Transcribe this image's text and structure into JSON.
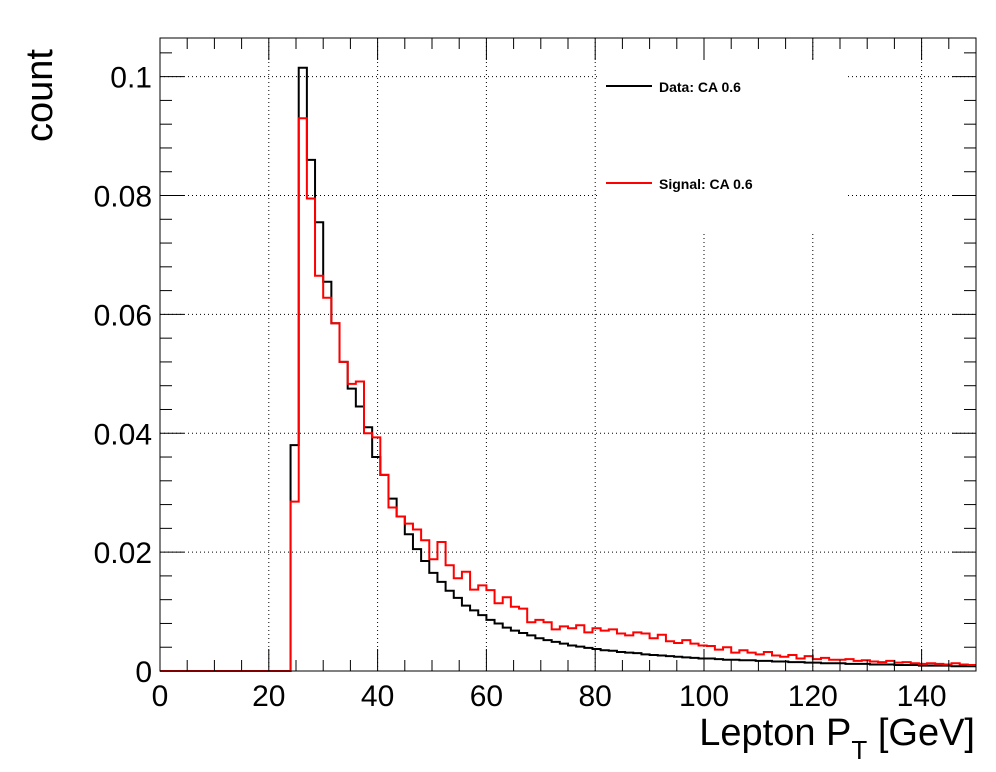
{
  "chart_data": {
    "type": "line",
    "style": "step-histogram",
    "xlabel": "Lepton P",
    "xlabel_sub": "T",
    "xlabel_unit": " [GeV]",
    "ylabel": "count",
    "xlim": [
      0,
      150
    ],
    "ylim": [
      0,
      0.1065
    ],
    "x_ticks": [
      "0",
      "20",
      "40",
      "60",
      "80",
      "100",
      "120",
      "140"
    ],
    "y_ticks": [
      "0",
      "0.02",
      "0.04",
      "0.06",
      "0.08",
      "0.1"
    ],
    "grid": true,
    "legend_position": "top-right",
    "bin_width": 1.5,
    "series": [
      {
        "name": "Data: CA 0.6",
        "color": "#000000",
        "values": [
          0,
          0,
          0,
          0,
          0,
          0,
          0,
          0,
          0,
          0,
          0,
          0,
          0,
          0,
          0,
          0,
          0.038,
          0.1015,
          0.086,
          0.0755,
          0.0655,
          0.0585,
          0.052,
          0.0475,
          0.0445,
          0.041,
          0.036,
          0.033,
          0.029,
          0.026,
          0.023,
          0.0205,
          0.0185,
          0.0165,
          0.015,
          0.0135,
          0.0123,
          0.011,
          0.0102,
          0.0094,
          0.0086,
          0.008,
          0.0073,
          0.0068,
          0.0064,
          0.006,
          0.0055,
          0.0052,
          0.0049,
          0.0046,
          0.0043,
          0.0041,
          0.0039,
          0.0037,
          0.0035,
          0.0034,
          0.0032,
          0.0031,
          0.003,
          0.0028,
          0.0027,
          0.0026,
          0.0025,
          0.0024,
          0.0023,
          0.0022,
          0.0021,
          0.0021,
          0.002,
          0.0019,
          0.0019,
          0.0018,
          0.0018,
          0.0017,
          0.0017,
          0.0016,
          0.0016,
          0.0015,
          0.0015,
          0.0014,
          0.0014,
          0.0013,
          0.0013,
          0.0013,
          0.0012,
          0.0012,
          0.0012,
          0.0011,
          0.0011,
          0.0011,
          0.001,
          0.001,
          0.001,
          0.0009,
          0.0009,
          0.0009,
          0.0009,
          0.0008,
          0.0008,
          0.0008
        ]
      },
      {
        "name": "Signal: CA 0.6",
        "color": "#ff0000",
        "values": [
          0,
          0,
          0,
          0,
          0,
          0,
          0,
          0,
          0,
          0,
          0,
          0,
          0,
          0,
          0,
          0,
          0.0285,
          0.093,
          0.0795,
          0.0665,
          0.0628,
          0.0585,
          0.052,
          0.0483,
          0.0487,
          0.04,
          0.0393,
          0.033,
          0.0275,
          0.026,
          0.0248,
          0.0238,
          0.022,
          0.0188,
          0.0217,
          0.0178,
          0.0156,
          0.0167,
          0.0137,
          0.0144,
          0.0136,
          0.0114,
          0.0124,
          0.0108,
          0.0105,
          0.0082,
          0.0086,
          0.0082,
          0.007,
          0.0075,
          0.0072,
          0.0077,
          0.0065,
          0.0072,
          0.0068,
          0.007,
          0.0063,
          0.006,
          0.0065,
          0.0063,
          0.0055,
          0.0061,
          0.005,
          0.0047,
          0.0052,
          0.0046,
          0.0043,
          0.0042,
          0.0036,
          0.004,
          0.0031,
          0.0035,
          0.0031,
          0.0028,
          0.0032,
          0.0026,
          0.0024,
          0.0027,
          0.0021,
          0.0025,
          0.002,
          0.0022,
          0.0019,
          0.0019,
          0.002,
          0.0017,
          0.0018,
          0.0016,
          0.0015,
          0.0017,
          0.0014,
          0.0015,
          0.0013,
          0.0012,
          0.0013,
          0.0012,
          0.0011,
          0.0013,
          0.0011,
          0.001
        ]
      }
    ]
  }
}
